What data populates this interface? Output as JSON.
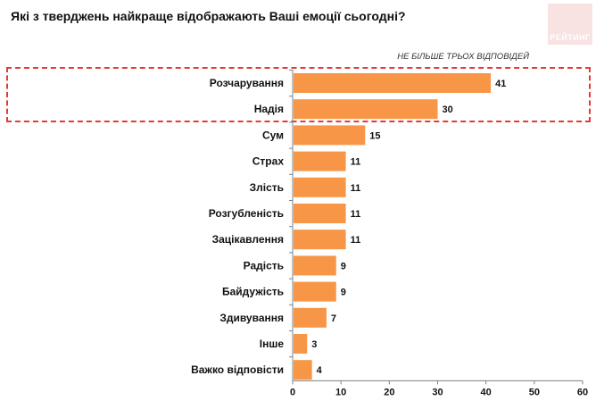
{
  "title": "Які з тверджень найкраще відображають Ваші емоції сьогодні?",
  "logo": {
    "text": "РЕЙТИНГ"
  },
  "note": "НЕ БІЛЬШЕ ТРЬОХ ВІДПОВІДЕЙ",
  "colors": {
    "bar": "#f79646",
    "highlight": "#e53935",
    "axis": "#808080"
  },
  "chart_data": {
    "type": "bar",
    "orientation": "horizontal",
    "categories": [
      "Розчарування",
      "Надія",
      "Сум",
      "Страх",
      "Злість",
      "Розгубленість",
      "Зацікавлення",
      "Радість",
      "Байдужість",
      "Здивування",
      "Інше",
      "Важко відповісти"
    ],
    "values": [
      41,
      30,
      15,
      11,
      11,
      11,
      11,
      9,
      9,
      7,
      3,
      4
    ],
    "xlim": [
      0,
      60
    ],
    "xticks": [
      0,
      10,
      20,
      30,
      40,
      50,
      60
    ],
    "highlighted_categories": [
      "Розчарування",
      "Надія"
    ],
    "grid": false,
    "xlabel": "",
    "ylabel": ""
  }
}
